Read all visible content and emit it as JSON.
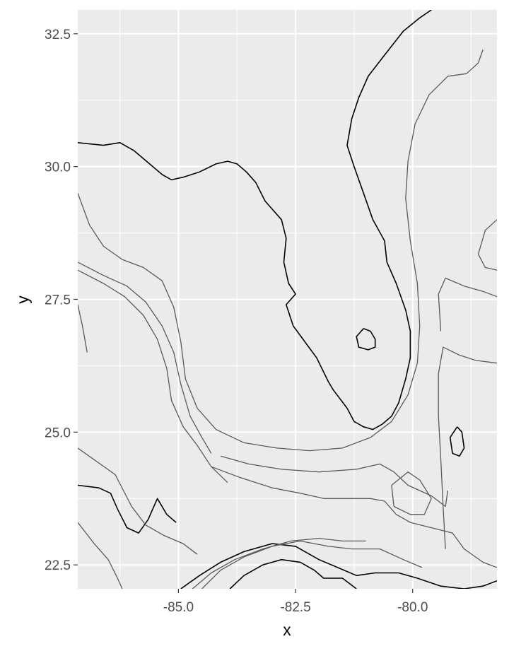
{
  "chart_data": {
    "type": "contour-map",
    "title": "",
    "xlabel": "x",
    "ylabel": "y",
    "xlim": [
      -87.15,
      -78.2
    ],
    "ylim": [
      22.05,
      32.95
    ],
    "x_ticks": [
      {
        "value": -85.0,
        "label": "-85.0"
      },
      {
        "value": -82.5,
        "label": "-82.5"
      },
      {
        "value": -80.0,
        "label": "-80.0"
      }
    ],
    "y_ticks": [
      {
        "value": 22.5,
        "label": "22.5"
      },
      {
        "value": 25.0,
        "label": "25.0"
      },
      {
        "value": 27.5,
        "label": "27.5"
      },
      {
        "value": 30.0,
        "label": "30.0"
      },
      {
        "value": 32.5,
        "label": "32.5"
      }
    ],
    "grid": true,
    "colors": {
      "panel_background": "#ebebeb",
      "grid": "#ffffff",
      "coastline": "#000000",
      "isobath": "#5a5a5a"
    },
    "series": [
      {
        "role": "coastline",
        "points": [
          [
            -87.15,
            30.45
          ],
          [
            -86.6,
            30.4
          ],
          [
            -86.25,
            30.45
          ],
          [
            -85.95,
            30.3
          ],
          [
            -85.75,
            30.15
          ],
          [
            -85.35,
            29.85
          ],
          [
            -85.15,
            29.75
          ],
          [
            -84.9,
            29.8
          ],
          [
            -84.55,
            29.9
          ],
          [
            -84.2,
            30.05
          ],
          [
            -83.95,
            30.1
          ],
          [
            -83.75,
            30.05
          ],
          [
            -83.55,
            29.9
          ],
          [
            -83.35,
            29.7
          ],
          [
            -83.15,
            29.35
          ],
          [
            -82.8,
            29.0
          ],
          [
            -82.7,
            28.65
          ],
          [
            -82.75,
            28.2
          ],
          [
            -82.65,
            27.8
          ],
          [
            -82.5,
            27.6
          ],
          [
            -82.7,
            27.4
          ],
          [
            -82.55,
            27.0
          ],
          [
            -82.3,
            26.7
          ],
          [
            -82.05,
            26.4
          ],
          [
            -81.8,
            25.95
          ],
          [
            -81.7,
            25.8
          ],
          [
            -81.4,
            25.45
          ],
          [
            -81.25,
            25.2
          ],
          [
            -81.05,
            25.1
          ],
          [
            -80.85,
            25.05
          ],
          [
            -80.65,
            25.15
          ],
          [
            -80.45,
            25.3
          ],
          [
            -80.3,
            25.55
          ],
          [
            -80.15,
            26.0
          ],
          [
            -80.05,
            26.4
          ],
          [
            -80.05,
            26.9
          ],
          [
            -80.15,
            27.3
          ],
          [
            -80.35,
            27.8
          ],
          [
            -80.55,
            28.2
          ],
          [
            -80.6,
            28.6
          ],
          [
            -80.85,
            29.0
          ],
          [
            -81.05,
            29.5
          ],
          [
            -81.25,
            30.0
          ],
          [
            -81.4,
            30.4
          ],
          [
            -81.3,
            30.9
          ],
          [
            -81.15,
            31.3
          ],
          [
            -80.95,
            31.7
          ],
          [
            -80.6,
            32.1
          ],
          [
            -80.2,
            32.55
          ],
          [
            -79.85,
            32.8
          ],
          [
            -79.6,
            32.95
          ]
        ]
      },
      {
        "role": "coastline-island",
        "points": [
          [
            -81.05,
            26.95
          ],
          [
            -80.9,
            26.9
          ],
          [
            -80.8,
            26.75
          ],
          [
            -80.8,
            26.6
          ],
          [
            -80.95,
            26.55
          ],
          [
            -81.15,
            26.6
          ],
          [
            -81.2,
            26.8
          ],
          [
            -81.05,
            26.95
          ]
        ]
      },
      {
        "role": "coastline-island",
        "points": [
          [
            -79.05,
            25.1
          ],
          [
            -78.95,
            25.0
          ],
          [
            -78.9,
            24.7
          ],
          [
            -79.0,
            24.55
          ],
          [
            -79.15,
            24.6
          ],
          [
            -79.2,
            24.9
          ],
          [
            -79.05,
            25.1
          ]
        ]
      },
      {
        "role": "coastline",
        "points": [
          [
            -87.15,
            24.0
          ],
          [
            -86.7,
            23.95
          ],
          [
            -86.45,
            23.85
          ],
          [
            -86.3,
            23.55
          ],
          [
            -86.1,
            23.2
          ],
          [
            -85.85,
            23.1
          ],
          [
            -85.65,
            23.35
          ],
          [
            -85.45,
            23.75
          ],
          [
            -85.25,
            23.45
          ],
          [
            -85.05,
            23.3
          ]
        ]
      },
      {
        "role": "coastline",
        "points": [
          [
            -84.95,
            22.05
          ],
          [
            -84.55,
            22.3
          ],
          [
            -84.1,
            22.55
          ],
          [
            -83.6,
            22.75
          ],
          [
            -83.0,
            22.9
          ],
          [
            -82.5,
            22.85
          ],
          [
            -82.0,
            22.6
          ],
          [
            -81.6,
            22.45
          ],
          [
            -81.2,
            22.3
          ],
          [
            -80.8,
            22.35
          ],
          [
            -80.3,
            22.35
          ],
          [
            -79.9,
            22.25
          ],
          [
            -79.4,
            22.1
          ],
          [
            -78.9,
            22.05
          ],
          [
            -78.5,
            22.1
          ],
          [
            -78.2,
            22.2
          ]
        ]
      },
      {
        "role": "coastline",
        "points": [
          [
            -83.9,
            22.05
          ],
          [
            -83.6,
            22.3
          ],
          [
            -83.2,
            22.5
          ],
          [
            -82.8,
            22.6
          ],
          [
            -82.4,
            22.55
          ],
          [
            -82.1,
            22.4
          ],
          [
            -81.9,
            22.25
          ],
          [
            -81.5,
            22.25
          ],
          [
            -81.2,
            22.05
          ]
        ]
      },
      {
        "role": "isobath",
        "points": [
          [
            -87.15,
            29.5
          ],
          [
            -86.9,
            28.9
          ],
          [
            -86.6,
            28.5
          ],
          [
            -86.2,
            28.25
          ],
          [
            -85.75,
            28.1
          ],
          [
            -85.35,
            27.85
          ],
          [
            -85.1,
            27.35
          ],
          [
            -84.95,
            26.7
          ],
          [
            -84.85,
            26.0
          ],
          [
            -84.6,
            25.45
          ],
          [
            -84.2,
            25.05
          ],
          [
            -83.6,
            24.8
          ],
          [
            -82.9,
            24.7
          ],
          [
            -82.2,
            24.65
          ],
          [
            -81.5,
            24.7
          ],
          [
            -80.9,
            24.9
          ],
          [
            -80.45,
            25.2
          ],
          [
            -80.1,
            25.7
          ],
          [
            -79.9,
            26.3
          ],
          [
            -79.85,
            27.0
          ],
          [
            -79.9,
            27.8
          ],
          [
            -80.05,
            28.6
          ],
          [
            -80.15,
            29.4
          ],
          [
            -80.1,
            30.1
          ],
          [
            -79.95,
            30.8
          ],
          [
            -79.65,
            31.35
          ],
          [
            -79.25,
            31.7
          ],
          [
            -78.85,
            31.75
          ],
          [
            -78.6,
            31.95
          ],
          [
            -78.5,
            32.2
          ]
        ]
      },
      {
        "role": "isobath",
        "points": [
          [
            -87.15,
            28.2
          ],
          [
            -86.6,
            27.95
          ],
          [
            -86.1,
            27.75
          ],
          [
            -85.7,
            27.45
          ],
          [
            -85.35,
            27.0
          ],
          [
            -85.1,
            26.5
          ],
          [
            -84.95,
            25.9
          ],
          [
            -84.75,
            25.3
          ],
          [
            -84.5,
            24.9
          ],
          [
            -84.3,
            24.6
          ]
        ]
      },
      {
        "role": "isobath",
        "points": [
          [
            -87.15,
            28.05
          ],
          [
            -86.6,
            27.8
          ],
          [
            -86.15,
            27.55
          ],
          [
            -85.75,
            27.2
          ],
          [
            -85.45,
            26.75
          ],
          [
            -85.25,
            26.2
          ],
          [
            -85.15,
            25.6
          ],
          [
            -84.9,
            25.1
          ],
          [
            -84.6,
            24.75
          ],
          [
            -84.3,
            24.35
          ],
          [
            -83.95,
            24.05
          ]
        ]
      },
      {
        "role": "isobath",
        "points": [
          [
            -84.3,
            24.35
          ],
          [
            -83.7,
            24.15
          ],
          [
            -83.0,
            23.95
          ],
          [
            -82.4,
            23.85
          ],
          [
            -81.9,
            23.75
          ],
          [
            -81.4,
            23.75
          ],
          [
            -80.9,
            23.75
          ],
          [
            -80.6,
            23.7
          ],
          [
            -80.35,
            23.45
          ],
          [
            -80.05,
            23.3
          ],
          [
            -79.6,
            23.2
          ],
          [
            -79.15,
            23.1
          ],
          [
            -78.9,
            22.8
          ],
          [
            -78.5,
            22.55
          ],
          [
            -78.2,
            22.45
          ]
        ]
      },
      {
        "role": "isobath",
        "points": [
          [
            -84.1,
            24.55
          ],
          [
            -83.5,
            24.4
          ],
          [
            -82.8,
            24.3
          ],
          [
            -82.0,
            24.25
          ],
          [
            -81.2,
            24.3
          ],
          [
            -80.7,
            24.4
          ],
          [
            -80.4,
            24.25
          ],
          [
            -80.1,
            24.0
          ],
          [
            -79.6,
            23.8
          ],
          [
            -79.3,
            23.6
          ],
          [
            -79.25,
            23.9
          ]
        ]
      },
      {
        "role": "isobath",
        "points": [
          [
            -80.45,
            24.0
          ],
          [
            -80.1,
            24.25
          ],
          [
            -79.85,
            24.1
          ],
          [
            -79.6,
            23.75
          ],
          [
            -79.75,
            23.45
          ],
          [
            -80.05,
            23.45
          ],
          [
            -80.4,
            23.6
          ],
          [
            -80.45,
            24.0
          ]
        ]
      },
      {
        "role": "isobath",
        "points": [
          [
            -79.3,
            22.8
          ],
          [
            -79.35,
            23.6
          ],
          [
            -79.4,
            24.5
          ],
          [
            -79.45,
            25.3
          ],
          [
            -79.45,
            26.1
          ],
          [
            -79.35,
            26.6
          ],
          [
            -79.0,
            26.45
          ],
          [
            -78.65,
            26.35
          ],
          [
            -78.2,
            26.3
          ]
        ]
      },
      {
        "role": "isobath",
        "points": [
          [
            -79.4,
            26.9
          ],
          [
            -79.45,
            27.6
          ],
          [
            -79.3,
            27.9
          ],
          [
            -78.9,
            27.75
          ],
          [
            -78.5,
            27.65
          ],
          [
            -78.2,
            27.55
          ]
        ]
      },
      {
        "role": "isobath",
        "points": [
          [
            -78.2,
            29.0
          ],
          [
            -78.45,
            28.8
          ],
          [
            -78.6,
            28.35
          ],
          [
            -78.45,
            28.1
          ],
          [
            -78.2,
            28.05
          ]
        ]
      },
      {
        "role": "isobath",
        "points": [
          [
            -87.15,
            23.3
          ],
          [
            -86.8,
            22.9
          ],
          [
            -86.5,
            22.6
          ],
          [
            -86.3,
            22.25
          ],
          [
            -86.2,
            22.05
          ]
        ]
      },
      {
        "role": "isobath",
        "points": [
          [
            -87.15,
            24.7
          ],
          [
            -86.75,
            24.45
          ],
          [
            -86.35,
            24.2
          ],
          [
            -86.0,
            23.6
          ],
          [
            -85.7,
            23.25
          ],
          [
            -85.3,
            23.05
          ],
          [
            -84.9,
            22.9
          ],
          [
            -84.6,
            22.7
          ]
        ]
      },
      {
        "role": "isobath",
        "points": [
          [
            -84.5,
            22.05
          ],
          [
            -84.1,
            22.4
          ],
          [
            -83.6,
            22.65
          ],
          [
            -83.0,
            22.85
          ],
          [
            -82.4,
            22.95
          ],
          [
            -81.8,
            22.85
          ],
          [
            -81.3,
            22.8
          ],
          [
            -80.7,
            22.8
          ],
          [
            -80.2,
            22.6
          ],
          [
            -79.8,
            22.45
          ]
        ]
      },
      {
        "role": "isobath",
        "points": [
          [
            -84.7,
            22.05
          ],
          [
            -84.3,
            22.35
          ],
          [
            -83.8,
            22.6
          ],
          [
            -83.2,
            22.8
          ],
          [
            -82.6,
            22.95
          ],
          [
            -82.0,
            23.0
          ],
          [
            -81.5,
            22.95
          ],
          [
            -81.0,
            22.95
          ]
        ]
      },
      {
        "role": "isobath",
        "points": [
          [
            -87.15,
            27.4
          ],
          [
            -87.05,
            27.0
          ],
          [
            -86.95,
            26.5
          ]
        ]
      }
    ]
  }
}
